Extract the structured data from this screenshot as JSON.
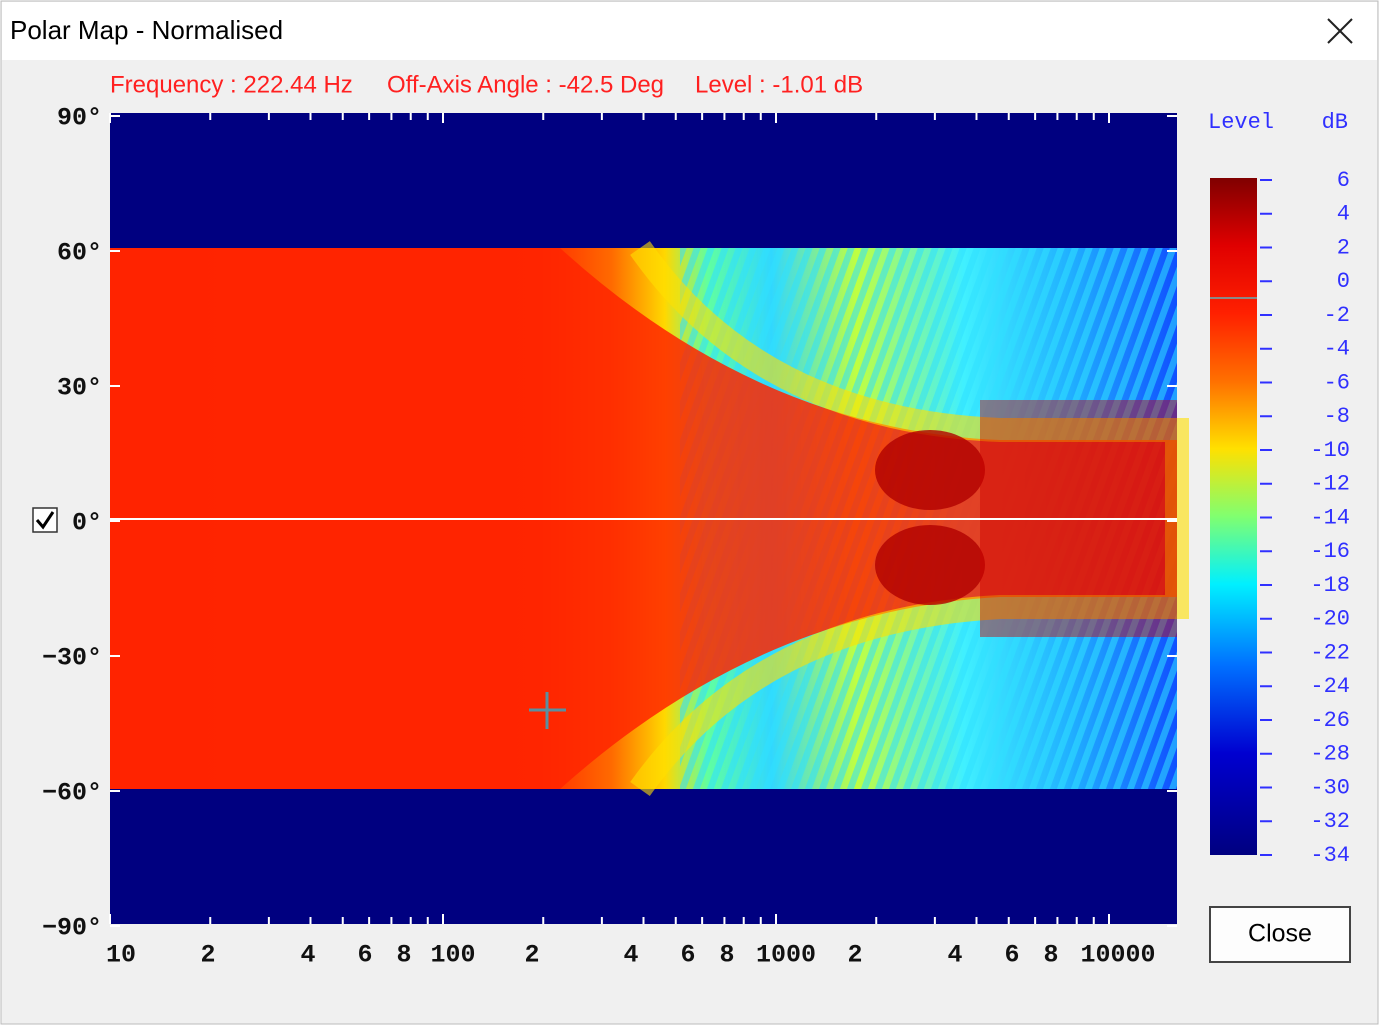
{
  "window": {
    "title": "Polar Map - Normalised"
  },
  "status": {
    "frequency": "Frequency : 222.44 Hz",
    "angle": "Off-Axis Angle : -42.5 Deg",
    "level": "Level : -1.01 dB"
  },
  "plot": {
    "y_labels": [
      "90°",
      "60°",
      "30°",
      "0°",
      "−30°",
      "−60°",
      "−90°"
    ],
    "x_labels": [
      "10",
      "2",
      "4",
      "6",
      "8",
      "100",
      "2",
      "4",
      "6",
      "8",
      "1000",
      "2",
      "4",
      "6",
      "8",
      "10000"
    ],
    "reference_line_checked": true
  },
  "colorbar": {
    "title": "Level",
    "unit": "dB",
    "labels": [
      "6",
      "4",
      "2",
      "0",
      "-2",
      "-4",
      "-6",
      "-8",
      "-10",
      "-12",
      "-14",
      "-16",
      "-18",
      "-20",
      "-22",
      "-24",
      "-26",
      "-28",
      "-30",
      "-32",
      "-34"
    ]
  },
  "buttons": {
    "close": "Close"
  }
}
